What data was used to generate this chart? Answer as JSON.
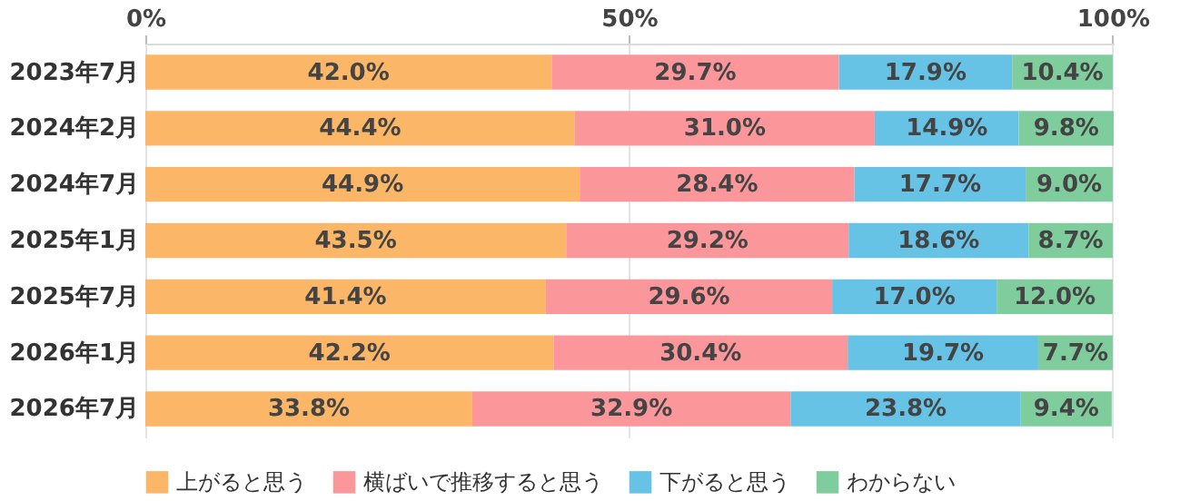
{
  "chart_data": {
    "type": "bar",
    "orientation": "horizontal",
    "stacked": true,
    "grid": "x",
    "legend": "bottom",
    "categories": [
      "2023年7月",
      "2024年2月",
      "2024年7月",
      "2025年1月",
      "2025年7月",
      "2026年1月",
      "2026年7月"
    ],
    "xlim": [
      0,
      100.1
    ],
    "xticks": [
      {
        "value": 0,
        "label": "0%"
      },
      {
        "value": 50,
        "label": "50%"
      },
      {
        "value": 100,
        "label": "100%"
      }
    ],
    "series": [
      {
        "name": "上がると思う",
        "color": "#fbb767",
        "values": [
          42.0,
          44.4,
          44.9,
          43.5,
          41.4,
          42.2,
          33.8
        ],
        "value_labels": [
          "42.0%",
          "44.4%",
          "44.9%",
          "43.5%",
          "41.4%",
          "42.2%",
          "33.8%"
        ]
      },
      {
        "name": "横ばいで推移すると思う",
        "color": "#fb979b",
        "values": [
          29.7,
          31.0,
          28.4,
          29.2,
          29.6,
          30.4,
          32.9
        ],
        "value_labels": [
          "29.7%",
          "31.0%",
          "28.4%",
          "29.2%",
          "29.6%",
          "30.4%",
          "32.9%"
        ]
      },
      {
        "name": "下がると思う",
        "color": "#66c3e6",
        "values": [
          17.9,
          14.9,
          17.7,
          18.6,
          17.0,
          19.7,
          23.8
        ],
        "value_labels": [
          "17.9%",
          "14.9%",
          "17.7%",
          "18.6%",
          "17.0%",
          "19.7%",
          "23.8%"
        ]
      },
      {
        "name": "わからない",
        "color": "#7fcc9c",
        "values": [
          10.4,
          9.8,
          9.0,
          8.7,
          12.0,
          7.7,
          9.4
        ],
        "value_labels": [
          "10.4%",
          "9.8%",
          "9.0%",
          "8.7%",
          "12.0%",
          "7.7%",
          "9.4%"
        ]
      }
    ]
  }
}
